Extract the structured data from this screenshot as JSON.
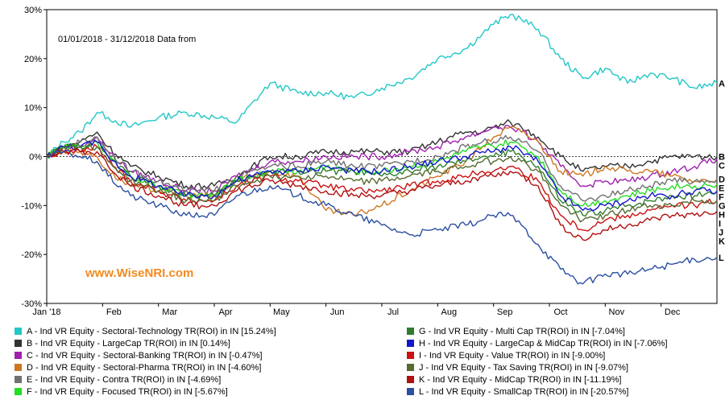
{
  "chart_data": {
    "type": "line",
    "title": "",
    "subtitle": "01/01/2018 - 31/12/2018 Data from",
    "watermark": "www.WiseNRI.com",
    "xlabel": "",
    "ylabel": "",
    "ylim": [
      -30,
      30
    ],
    "yticks": [
      30,
      20,
      10,
      0,
      -10,
      -20,
      -30
    ],
    "ytick_labels": [
      "30%",
      "20%",
      "10%",
      "0%",
      "-10%",
      "-20%",
      "-30%"
    ],
    "xtick_labels": [
      "Jan '18",
      "Feb",
      "Mar",
      "Apr",
      "May",
      "Jun",
      "Jul",
      "Aug",
      "Sep",
      "Oct",
      "Nov",
      "Dec"
    ],
    "xtick_months": [
      0,
      1,
      2,
      3,
      4,
      5,
      6,
      7,
      8,
      9,
      10,
      11
    ],
    "grid": false,
    "zero_line": "dotted",
    "legend_position": "bottom",
    "series": [
      {
        "code": "A",
        "name": "A - Ind VR Equity - Sectoral-Technology TR(ROI) in IN [15.24%]",
        "color": "#22c7c7",
        "x": [
          0,
          0.3,
          0.6,
          0.9,
          1.1,
          1.5,
          2.0,
          2.5,
          3.0,
          3.4,
          4.0,
          4.5,
          5.0,
          5.5,
          6.0,
          6.5,
          7.0,
          7.5,
          7.8,
          8.0,
          8.3,
          8.5,
          8.8,
          9.2,
          9.6,
          10.0,
          10.4,
          10.8,
          11.2,
          11.6,
          12.0
        ],
        "values": [
          0,
          3,
          5,
          9,
          8,
          6,
          8,
          9,
          8,
          7,
          15,
          13,
          13,
          12,
          14,
          16,
          20,
          22,
          25,
          27,
          29,
          28,
          26,
          20,
          16,
          18,
          15,
          17,
          16,
          14,
          15
        ]
      },
      {
        "code": "B",
        "name": "B - Ind VR Equity - LargeCap TR(ROI) in IN [0.14%]",
        "color": "#333333",
        "x": [
          0,
          0.3,
          0.6,
          0.9,
          1.1,
          1.5,
          2.0,
          2.5,
          3.0,
          3.4,
          4.0,
          4.5,
          5.0,
          5.5,
          6.0,
          6.5,
          7.0,
          7.5,
          7.8,
          8.0,
          8.3,
          8.5,
          8.8,
          9.2,
          9.6,
          10.0,
          10.4,
          10.8,
          11.2,
          11.6,
          12.0
        ],
        "values": [
          0,
          2,
          3,
          5,
          2,
          -2,
          -4,
          -6,
          -6,
          -4,
          0,
          0,
          1,
          1,
          1,
          1,
          3,
          5,
          5,
          6,
          7,
          6,
          4,
          0,
          -3,
          -2,
          -2,
          -1,
          0,
          0,
          0
        ]
      },
      {
        "code": "C",
        "name": "C - Ind VR Equity - Sectoral-Banking TR(ROI) in IN [-0.47%]",
        "color": "#a020b0",
        "x": [
          0,
          0.3,
          0.6,
          0.9,
          1.1,
          1.5,
          2.0,
          2.5,
          3.0,
          3.4,
          4.0,
          4.5,
          5.0,
          5.5,
          6.0,
          6.5,
          7.0,
          7.5,
          7.8,
          8.0,
          8.3,
          8.5,
          8.8,
          9.2,
          9.6,
          10.0,
          10.4,
          10.8,
          11.2,
          11.6,
          12.0
        ],
        "values": [
          0,
          2,
          2,
          4,
          1,
          -3,
          -5,
          -7,
          -7,
          -4,
          -1,
          -1,
          0,
          0,
          0,
          1,
          2,
          4,
          5,
          6,
          6,
          5,
          3,
          -2,
          -6,
          -5,
          -5,
          -4,
          -3,
          -2,
          -0.5
        ]
      },
      {
        "code": "D",
        "name": "D - Ind VR Equity - Sectoral-Pharma TR(ROI) in IN [-4.60%]",
        "color": "#cc7722",
        "x": [
          0,
          0.3,
          0.6,
          0.9,
          1.1,
          1.5,
          2.0,
          2.5,
          3.0,
          3.4,
          4.0,
          4.5,
          5.0,
          5.5,
          6.0,
          6.5,
          7.0,
          7.5,
          7.8,
          8.0,
          8.3,
          8.5,
          8.8,
          9.2,
          9.6,
          10.0,
          10.4,
          10.8,
          11.2,
          11.6,
          12.0
        ],
        "values": [
          0,
          1,
          1,
          0,
          -3,
          -6,
          -7,
          -8,
          -8,
          -5,
          -3,
          -4,
          -11,
          -12,
          -10,
          -7,
          -4,
          -1,
          2,
          4,
          6,
          5,
          3,
          -3,
          -4,
          -2,
          -3,
          -3,
          -4,
          -5,
          -4.6
        ]
      },
      {
        "code": "E",
        "name": "E - Ind VR Equity - Contra TR(ROI) in IN [-4.69%]",
        "color": "#707070",
        "x": [
          0,
          0.3,
          0.6,
          0.9,
          1.1,
          1.5,
          2.0,
          2.5,
          3.0,
          3.4,
          4.0,
          4.5,
          5.0,
          5.5,
          6.0,
          6.5,
          7.0,
          7.5,
          7.8,
          8.0,
          8.3,
          8.5,
          8.8,
          9.2,
          9.6,
          10.0,
          10.4,
          10.8,
          11.2,
          11.6,
          12.0
        ],
        "values": [
          0,
          2,
          3,
          4,
          1,
          -3,
          -5,
          -7,
          -7,
          -4,
          -2,
          -2,
          -1,
          -2,
          -2,
          -1,
          0,
          2,
          3,
          3,
          4,
          3,
          1,
          -6,
          -9,
          -8,
          -7,
          -6,
          -5,
          -5,
          -4.7
        ]
      },
      {
        "code": "F",
        "name": "F - Ind VR Equity - Focused TR(ROI) in IN [-5.67%]",
        "color": "#22dd22",
        "x": [
          0,
          0.3,
          0.6,
          0.9,
          1.1,
          1.5,
          2.0,
          2.5,
          3.0,
          3.4,
          4.0,
          4.5,
          5.0,
          5.5,
          6.0,
          6.5,
          7.0,
          7.5,
          7.8,
          8.0,
          8.3,
          8.5,
          8.8,
          9.2,
          9.6,
          10.0,
          10.4,
          10.8,
          11.2,
          11.6,
          12.0
        ],
        "values": [
          0,
          2,
          2,
          3,
          0,
          -4,
          -6,
          -8,
          -8,
          -5,
          -3,
          -3,
          -2,
          -3,
          -3,
          -2,
          -1,
          1,
          2,
          2,
          3,
          2,
          0,
          -7,
          -10,
          -9,
          -8,
          -7,
          -6,
          -6,
          -5.7
        ]
      },
      {
        "code": "G",
        "name": "G - Ind VR Equity - Multi Cap TR(ROI) in IN [-7.04%]",
        "color": "#2e7d2e",
        "x": [
          0,
          0.3,
          0.6,
          0.9,
          1.1,
          1.5,
          2.0,
          2.5,
          3.0,
          3.4,
          4.0,
          4.5,
          5.0,
          5.5,
          6.0,
          6.5,
          7.0,
          7.5,
          7.8,
          8.0,
          8.3,
          8.5,
          8.8,
          9.2,
          9.6,
          10.0,
          10.4,
          10.8,
          11.2,
          11.6,
          12.0
        ],
        "values": [
          0,
          2,
          2,
          3,
          0,
          -4,
          -6,
          -8,
          -8,
          -5,
          -3,
          -3,
          -3,
          -3,
          -4,
          -3,
          -2,
          -1,
          0,
          0,
          1,
          0,
          -2,
          -9,
          -12,
          -11,
          -10,
          -9,
          -8,
          -8,
          -7
        ]
      },
      {
        "code": "H",
        "name": "H - Ind VR Equity - LargeCap & MidCap TR(ROI) in IN [-7.06%]",
        "color": "#1515cc",
        "x": [
          0,
          0.3,
          0.6,
          0.9,
          1.1,
          1.5,
          2.0,
          2.5,
          3.0,
          3.4,
          4.0,
          4.5,
          5.0,
          5.5,
          6.0,
          6.5,
          7.0,
          7.5,
          7.8,
          8.0,
          8.3,
          8.5,
          8.8,
          9.2,
          9.6,
          10.0,
          10.4,
          10.8,
          11.2,
          11.6,
          12.0
        ],
        "values": [
          0,
          2,
          2,
          3,
          0,
          -4,
          -6,
          -8,
          -8,
          -5,
          -3,
          -3,
          -2,
          -3,
          -3,
          -2,
          -1,
          0,
          1,
          1,
          2,
          1,
          -1,
          -8,
          -11,
          -10,
          -9,
          -8,
          -8,
          -7,
          -7.1
        ]
      },
      {
        "code": "I",
        "name": "I - Ind VR Equity - Value TR(ROI) in IN [-9.00%]",
        "color": "#cc1111",
        "x": [
          0,
          0.3,
          0.6,
          0.9,
          1.1,
          1.5,
          2.0,
          2.5,
          3.0,
          3.4,
          4.0,
          4.5,
          5.0,
          5.5,
          6.0,
          6.5,
          7.0,
          7.5,
          7.8,
          8.0,
          8.3,
          8.5,
          8.8,
          9.2,
          9.6,
          10.0,
          10.4,
          10.8,
          11.2,
          11.6,
          12.0
        ],
        "values": [
          0,
          1,
          1,
          2,
          -1,
          -5,
          -7,
          -9,
          -9,
          -6,
          -4,
          -5,
          -6,
          -7,
          -7,
          -6,
          -5,
          -4,
          -3,
          -3,
          -2,
          -3,
          -5,
          -12,
          -15,
          -13,
          -12,
          -11,
          -10,
          -10,
          -9
        ]
      },
      {
        "code": "J",
        "name": "J - Ind VR Equity - Tax Saving TR(ROI) in IN [-9.07%]",
        "color": "#556b2f",
        "x": [
          0,
          0.3,
          0.6,
          0.9,
          1.1,
          1.5,
          2.0,
          2.5,
          3.0,
          3.4,
          4.0,
          4.5,
          5.0,
          5.5,
          6.0,
          6.5,
          7.0,
          7.5,
          7.8,
          8.0,
          8.3,
          8.5,
          8.8,
          9.2,
          9.6,
          10.0,
          10.4,
          10.8,
          11.2,
          11.6,
          12.0
        ],
        "values": [
          0,
          2,
          2,
          2,
          -1,
          -5,
          -7,
          -9,
          -9,
          -6,
          -4,
          -4,
          -4,
          -5,
          -5,
          -4,
          -3,
          -2,
          -1,
          -1,
          0,
          -1,
          -3,
          -10,
          -13,
          -12,
          -11,
          -10,
          -10,
          -9,
          -9.1
        ]
      },
      {
        "code": "K",
        "name": "K - Ind VR Equity - MidCap TR(ROI) in IN [-11.19%]",
        "color": "#b01010",
        "x": [
          0,
          0.3,
          0.6,
          0.9,
          1.1,
          1.5,
          2.0,
          2.5,
          3.0,
          3.4,
          4.0,
          4.5,
          5.0,
          5.5,
          6.0,
          6.5,
          7.0,
          7.5,
          7.8,
          8.0,
          8.3,
          8.5,
          8.8,
          9.2,
          9.6,
          10.0,
          10.4,
          10.8,
          11.2,
          11.6,
          12.0
        ],
        "values": [
          0,
          1,
          1,
          1,
          -2,
          -6,
          -8,
          -10,
          -10,
          -7,
          -5,
          -6,
          -7,
          -8,
          -8,
          -7,
          -6,
          -5,
          -4,
          -4,
          -3,
          -4,
          -6,
          -14,
          -17,
          -15,
          -14,
          -13,
          -12,
          -12,
          -11.2
        ]
      },
      {
        "code": "L",
        "name": "L - Ind VR Equity - SmallCap TR(ROI) in IN [-20.57%]",
        "color": "#2a4fa0",
        "x": [
          0,
          0.3,
          0.6,
          0.9,
          1.1,
          1.5,
          2.0,
          2.5,
          3.0,
          3.4,
          4.0,
          4.5,
          5.0,
          5.5,
          6.0,
          6.5,
          7.0,
          7.5,
          7.8,
          8.0,
          8.3,
          8.5,
          8.8,
          9.2,
          9.6,
          10.0,
          10.4,
          10.8,
          11.2,
          11.6,
          12.0
        ],
        "values": [
          0,
          1,
          0,
          -1,
          -4,
          -8,
          -10,
          -12,
          -12,
          -8,
          -6,
          -8,
          -10,
          -12,
          -14,
          -16,
          -15,
          -14,
          -13,
          -12,
          -12,
          -14,
          -18,
          -23,
          -26,
          -24,
          -24,
          -23,
          -22,
          -21,
          -20.6
        ]
      }
    ]
  }
}
